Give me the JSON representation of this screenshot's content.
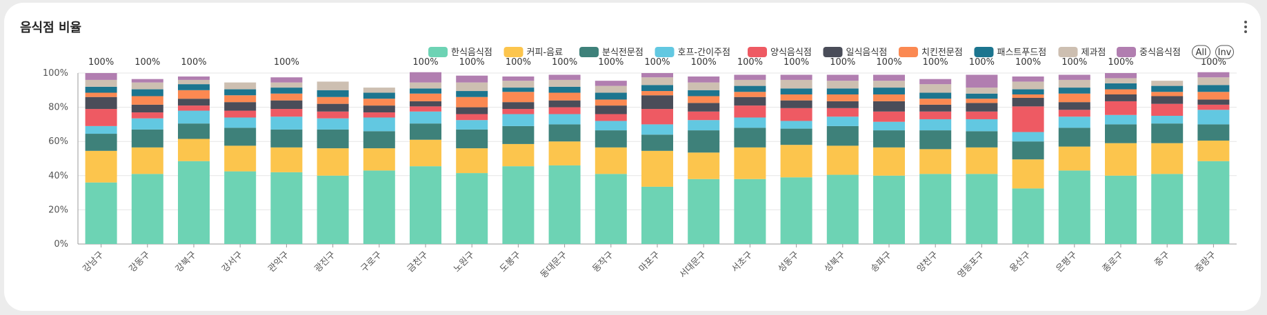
{
  "card": {
    "title": "음식점 비율"
  },
  "legend_buttons": {
    "all": "All",
    "inv": "Inv"
  },
  "chart_data": {
    "type": "bar",
    "stacked": true,
    "normalized": true,
    "ylim": [
      0,
      100
    ],
    "yticks": [
      "0%",
      "20%",
      "40%",
      "60%",
      "80%",
      "100%"
    ],
    "legend_position": "top-right",
    "categories": [
      "강남구",
      "강동구",
      "강북구",
      "강서구",
      "관악구",
      "광진구",
      "구로구",
      "금천구",
      "노원구",
      "도봉구",
      "동대문구",
      "동작구",
      "마포구",
      "서대문구",
      "서초구",
      "성동구",
      "성북구",
      "송파구",
      "양천구",
      "영등포구",
      "용산구",
      "은평구",
      "종로구",
      "중구",
      "중랑구"
    ],
    "total_labels": [
      "100%",
      "100%",
      "100%",
      "",
      "100%",
      "",
      "",
      "100%",
      "100%",
      "100%",
      "100%",
      "100%",
      "100%",
      "100%",
      "100%",
      "100%",
      "100%",
      "100%",
      "100%",
      "100%",
      "100%",
      "100%",
      "100%",
      "",
      "100%"
    ],
    "series": [
      {
        "name": "한식음식점",
        "color": "#6dd3b4",
        "values": [
          36,
          41,
          48.5,
          42.5,
          42,
          40,
          43,
          45.5,
          41.5,
          45.5,
          46,
          41,
          33.5,
          38,
          38,
          39,
          40.5,
          40,
          41,
          41,
          32.5,
          43,
          40,
          41,
          48.5
        ]
      },
      {
        "name": "커피-음료",
        "color": "#fcc54d",
        "values": [
          18.5,
          15.5,
          13,
          15,
          14.5,
          16,
          13,
          15.5,
          14.5,
          13,
          14,
          15.5,
          21,
          15.5,
          18.5,
          19,
          17,
          16.5,
          14.5,
          15.5,
          17,
          14,
          19,
          18,
          12
        ]
      },
      {
        "name": "분식전문점",
        "color": "#3e817a",
        "values": [
          10,
          10.5,
          9,
          10.5,
          10.5,
          11,
          10,
          9.5,
          11,
          10.5,
          10,
          10,
          9.5,
          13,
          11.5,
          9.5,
          11.5,
          10,
          11,
          9.5,
          10.5,
          11,
          11,
          11.5,
          9.5
        ]
      },
      {
        "name": "호프-간이주점",
        "color": "#62c8e1",
        "values": [
          4.5,
          6.5,
          7.5,
          6,
          7.5,
          6.5,
          8,
          7,
          5.5,
          7,
          6,
          5.5,
          6,
          6,
          6,
          4.5,
          5.5,
          5,
          6.5,
          7,
          5.5,
          6.5,
          5.5,
          4.5,
          8.5
        ]
      },
      {
        "name": "양식음식점",
        "color": "#ee5a63",
        "values": [
          10,
          3.5,
          3,
          4,
          4.5,
          4,
          3,
          3,
          3.5,
          3,
          4,
          4,
          9,
          5,
          7,
          7.5,
          5,
          6,
          4.5,
          4.5,
          15,
          4,
          8,
          7,
          3
        ]
      },
      {
        "name": "일식음식점",
        "color": "#4a4d59",
        "values": [
          7,
          4.5,
          4,
          5,
          5,
          4.5,
          4,
          3,
          4,
          4,
          4,
          5,
          8,
          5,
          5,
          4.5,
          4,
          6,
          4,
          5,
          5,
          4.5,
          4,
          4.5,
          3
        ]
      },
      {
        "name": "치킨전문점",
        "color": "#fb8952",
        "values": [
          2.5,
          5,
          5,
          4,
          4,
          4,
          4,
          4.5,
          6,
          6,
          4.5,
          3.5,
          2.5,
          4,
          3,
          3.5,
          4,
          4,
          3.5,
          2.5,
          2,
          5,
          3,
          2.5,
          4.5
        ]
      },
      {
        "name": "패스트푸드점",
        "color": "#1c758f",
        "values": [
          3.5,
          4,
          3.5,
          3.5,
          3.5,
          4,
          3.5,
          3,
          3.5,
          2.5,
          3.5,
          4,
          3.5,
          3.5,
          3.5,
          3.5,
          3.5,
          4,
          3.5,
          3,
          3,
          3.5,
          3.5,
          3.5,
          4
        ]
      },
      {
        "name": "제과점",
        "color": "#cdbfb1",
        "values": [
          4,
          4,
          2.5,
          4,
          3,
          5,
          3,
          3.5,
          5,
          4,
          4,
          4,
          4.5,
          4.5,
          3.5,
          5,
          4.5,
          4,
          5,
          3.5,
          4.5,
          4.5,
          3,
          3,
          4.5
        ]
      },
      {
        "name": "중식음식점",
        "color": "#b17eb0",
        "values": [
          4,
          2,
          2,
          0,
          3,
          0,
          0,
          6,
          4,
          2.5,
          3,
          3,
          2.5,
          3.5,
          3,
          3,
          3.5,
          3.5,
          3,
          7.5,
          3,
          3,
          3,
          0,
          3
        ]
      }
    ]
  }
}
